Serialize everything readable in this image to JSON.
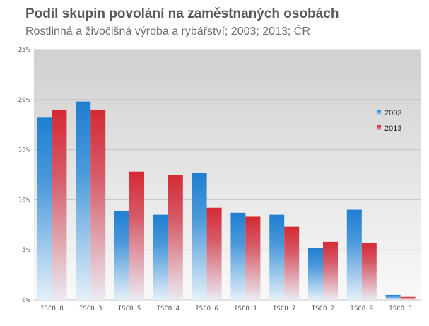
{
  "chart_data": {
    "type": "bar",
    "title": "Podíl skupin povolání na zaměstnaných osobách",
    "subtitle": "Rostlinná a živočišná výroba a rybářství; 2003; 2013; ČR",
    "xlabel": "",
    "ylabel": "",
    "ylim": [
      0,
      25
    ],
    "yticks": [
      "0%",
      "5%",
      "10%",
      "15%",
      "20%",
      "25%"
    ],
    "grid": true,
    "legend": "right",
    "categories": [
      "ISCO 8",
      "ISCO 3",
      "ISCO 5",
      "ISCO 4",
      "ISCO 6",
      "ISCO 1",
      "ISCO 7",
      "ISCO 2",
      "ISCO 9",
      "ISCO 0"
    ],
    "series": [
      {
        "name": "2003",
        "color": "#1f7fd0",
        "values": [
          18.2,
          19.8,
          8.9,
          8.5,
          12.7,
          8.7,
          8.5,
          5.2,
          9.0,
          0.5
        ]
      },
      {
        "name": "2013",
        "color": "#d42a33",
        "values": [
          19.0,
          19.0,
          12.8,
          12.5,
          9.2,
          8.3,
          7.3,
          5.8,
          5.7,
          0.3
        ]
      }
    ]
  }
}
